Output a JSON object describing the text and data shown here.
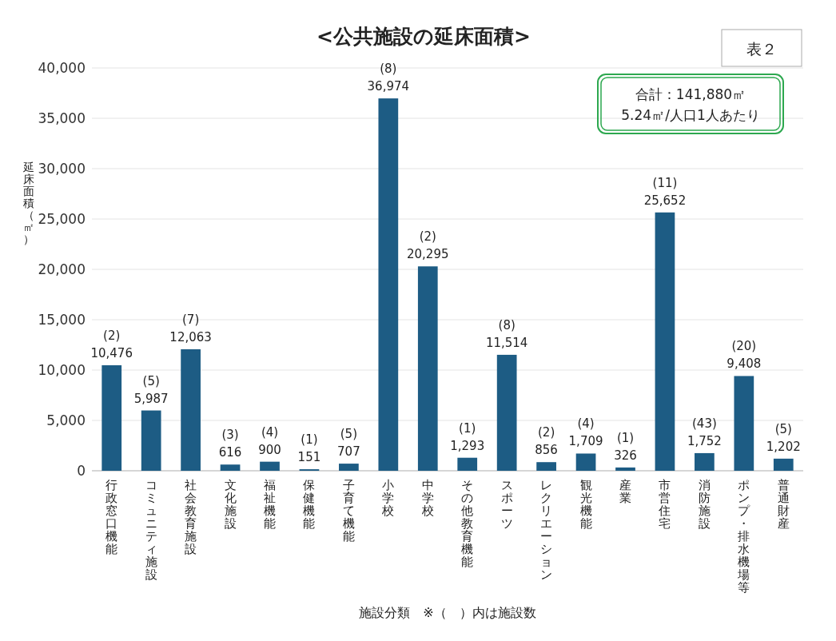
{
  "chart_data": {
    "type": "bar",
    "title": "<公共施設の延床面積>",
    "xlabel": "施設分類　※（　）内は施設数",
    "ylabel": "延床面積（㎡）",
    "categories": [
      "行政窓口機能",
      "コミュニティ施設",
      "社会教育施設",
      "文化施設",
      "福祉機能",
      "保健機能",
      "子育て機能",
      "小学校",
      "中学校",
      "その他教育機能",
      "スポーツ",
      "レクリエーション",
      "観光機能",
      "産業",
      "市営住宅",
      "消防施設",
      "ポンプ・排水機場等",
      "普通財産"
    ],
    "values": [
      10476,
      5987,
      12063,
      616,
      900,
      151,
      707,
      36974,
      20295,
      1293,
      11514,
      856,
      1709,
      326,
      25652,
      1752,
      9408,
      1202
    ],
    "value_labels": [
      "10,476",
      "5,987",
      "12,063",
      "616",
      "900",
      "151",
      "707",
      "36,974",
      "20,295",
      "1,293",
      "11,514",
      "856",
      "1,709",
      "326",
      "25,652",
      "1,752",
      "9,408",
      "1,202"
    ],
    "color": "#1d5c84",
    "ylim": [
      0,
      40000
    ],
    "yticks": [
      0,
      {
        "value": 5000,
        "label": "5,000"
      },
      {
        "value": 10000,
        "label": "10,000"
      },
      {
        "value": 15000,
        "label": "15,000"
      },
      {
        "value": 20000,
        "label": "20,000"
      },
      {
        "value": 25000,
        "label": "25,000"
      },
      {
        "value": 30000,
        "label": "30,000"
      },
      {
        "value": 35000,
        "label": "35,000"
      },
      {
        "value": 40000,
        "label": "40,000"
      }
    ],
    "grid": "y",
    "annotations": [
      "表２",
      "合計：141,880㎡",
      "5.24㎡/人口1人あたり",
      {
        "text": "(2)",
        "x": "行政窓口機能",
        "y": 10476
      },
      {
        "text": "(5)",
        "x": "コミュニティ施設",
        "y": 5987
      },
      {
        "text": "(7)",
        "x": "社会教育施設",
        "y": 12063
      },
      {
        "text": "(3)",
        "x": "文化施設",
        "y": 616
      },
      {
        "text": "(4)",
        "x": "福祉機能",
        "y": 900
      },
      {
        "text": "(1)",
        "x": "保健機能",
        "y": 151
      },
      {
        "text": "(5)",
        "x": "子育て機能",
        "y": 707
      },
      {
        "text": "(8)",
        "x": "小学校",
        "y": 36974
      },
      {
        "text": "(2)",
        "x": "中学校",
        "y": 20295
      },
      {
        "text": "(1)",
        "x": "その他教育機能",
        "y": 1293
      },
      {
        "text": "(8)",
        "x": "スポーツ",
        "y": 11514
      },
      {
        "text": "(2)",
        "x": "レクリエーション",
        "y": 856
      },
      {
        "text": "(4)",
        "x": "観光機能",
        "y": 1709
      },
      {
        "text": "(1)",
        "x": "産業",
        "y": 326
      },
      {
        "text": "(11)",
        "x": "市営住宅",
        "y": 25652
      },
      {
        "text": "(43)",
        "x": "消防施設",
        "y": 1752
      },
      {
        "text": "(20)",
        "x": "ポンプ・排水機場等",
        "y": 9408
      },
      {
        "text": "(5)",
        "x": "普通財産",
        "y": 1202
      }
    ]
  }
}
